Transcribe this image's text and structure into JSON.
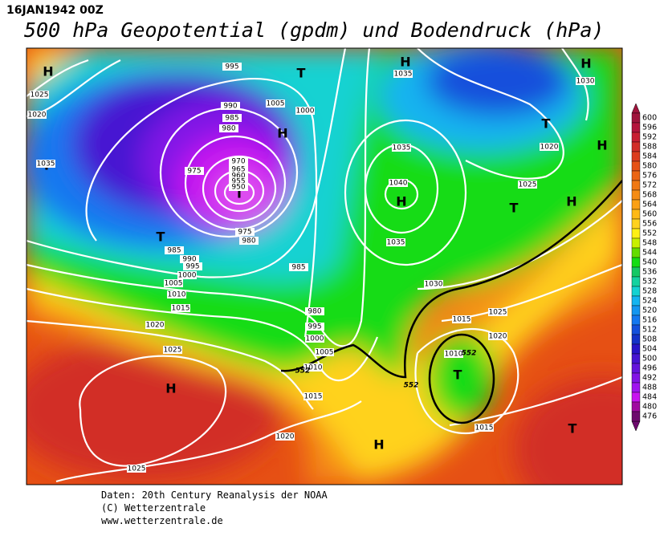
{
  "header": {
    "date": "16JAN1942 00Z",
    "title": "500 hPa Geopotential (gpdm) und Bodendruck (hPa)"
  },
  "map": {
    "centers": [
      "H",
      "T",
      "H",
      "H",
      "H",
      "T",
      "H",
      "T",
      "T",
      "H",
      "T",
      "H",
      "T",
      "H",
      "T",
      "H",
      "T"
    ],
    "isobar_labels": [
      "995",
      "1035",
      "1030",
      "1025",
      "1020",
      "1005",
      "1000",
      "990",
      "985",
      "980",
      "1035",
      "1020",
      "1035",
      "975",
      "970",
      "965",
      "960",
      "955",
      "950",
      "1040",
      "1025",
      "975",
      "980",
      "1035",
      "985",
      "990",
      "995",
      "1000",
      "985",
      "1005",
      "1030",
      "1010",
      "1015",
      "980",
      "1025",
      "995",
      "1020",
      "1015",
      "1000",
      "1020",
      "1025",
      "1005",
      "1010",
      "1010",
      "1015",
      "1015",
      "1020",
      "1025"
    ],
    "contour_labels": [
      "552",
      "552",
      "552"
    ]
  },
  "colorbar": {
    "levels": [
      600,
      596,
      592,
      588,
      584,
      580,
      576,
      572,
      568,
      564,
      560,
      556,
      552,
      548,
      544,
      540,
      536,
      532,
      528,
      524,
      520,
      516,
      512,
      508,
      504,
      500,
      496,
      492,
      488,
      484,
      480,
      476
    ],
    "colors": [
      "#a0143c",
      "#b4143c",
      "#c81e32",
      "#d22d28",
      "#dc3c1e",
      "#e65014",
      "#eb6414",
      "#f07814",
      "#f58c14",
      "#faa014",
      "#ffb914",
      "#ffd21e",
      "#fff014",
      "#c8f000",
      "#64dc00",
      "#14dc14",
      "#14c864",
      "#14d2a0",
      "#14d2d2",
      "#14b4f0",
      "#1496f0",
      "#1478f0",
      "#1450dc",
      "#1432c8",
      "#2814c8",
      "#4614d2",
      "#6414dc",
      "#8214e6",
      "#a014f0",
      "#c814f0",
      "#a00aa0",
      "#6e0a6e"
    ]
  },
  "footer": {
    "source": "Daten: 20th Century Reanalysis der NOAA",
    "copyright": "(C) Wetterzentrale",
    "url": "www.wetterzentrale.de"
  }
}
